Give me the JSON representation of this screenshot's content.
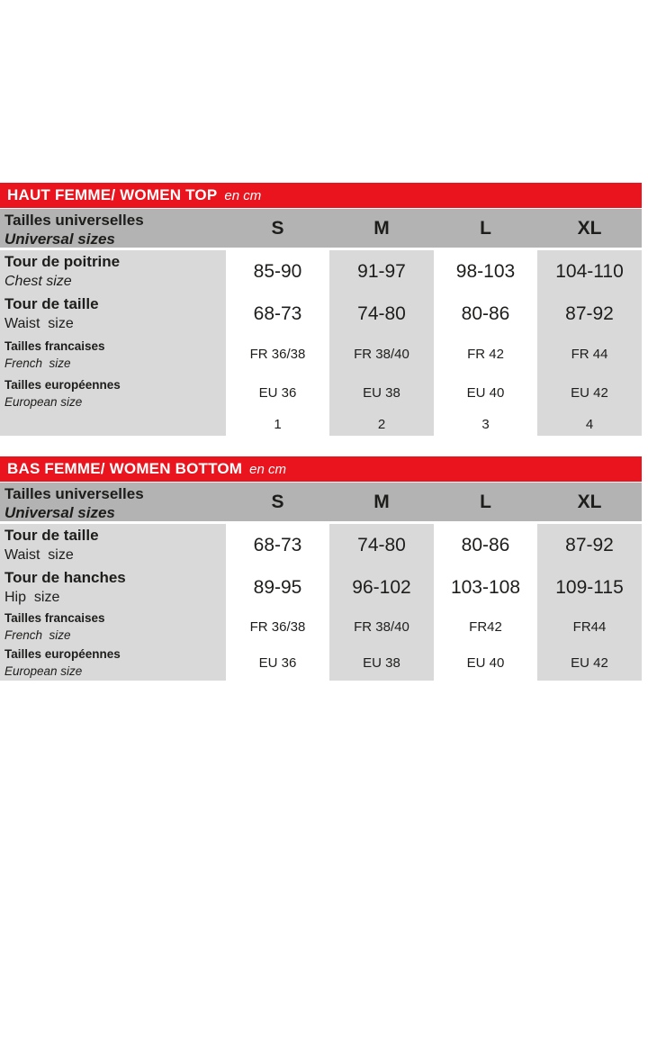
{
  "accent_color": "#e9141d",
  "header_gray": "#b3b3b3",
  "column_gray": "#d9d9d9",
  "tables": [
    {
      "title": "HAUT FEMME/ WOMEN TOP",
      "unit": "en cm",
      "header": {
        "label_fr": "Tailles universelles",
        "label_en": "Universal sizes",
        "sizes": [
          "S",
          "M",
          "L",
          "XL"
        ]
      },
      "rows": [
        {
          "label_fr": "Tour de poitrine",
          "label_en": "Chest size",
          "values": [
            "85-90",
            "91-97",
            "98-103",
            "104-110"
          ]
        },
        {
          "label_fr": "Tour de taille",
          "label_en": "Waist  size",
          "values": [
            "68-73",
            "74-80",
            "80-86",
            "87-92"
          ]
        },
        {
          "label_fr": "Tailles francaises",
          "label_en": "French  size",
          "values": [
            "FR 36/38",
            "FR 38/40",
            "FR 42",
            "FR 44"
          ]
        },
        {
          "label_fr": "Tailles européennes",
          "label_en": "European size",
          "values": [
            "EU 36",
            "EU 38",
            "EU 40",
            "EU 42"
          ]
        },
        {
          "label_fr": "",
          "label_en": "",
          "values": [
            "1",
            "2",
            "3",
            "4"
          ]
        }
      ]
    },
    {
      "title": "BAS FEMME/ WOMEN BOTTOM",
      "unit": "en cm",
      "header": {
        "label_fr": "Tailles universelles",
        "label_en": "Universal sizes",
        "sizes": [
          "S",
          "M",
          "L",
          "XL"
        ]
      },
      "rows": [
        {
          "label_fr": "Tour de taille",
          "label_en": "Waist  size",
          "values": [
            "68-73",
            "74-80",
            "80-86",
            "87-92"
          ]
        },
        {
          "label_fr": "Tour de hanches",
          "label_en": "Hip  size",
          "values": [
            "89-95",
            "96-102",
            "103-108",
            "109-115"
          ]
        },
        {
          "label_fr": "Tailles francaises",
          "label_en": "French  size",
          "values": [
            "FR 36/38",
            "FR 38/40",
            "FR42",
            "FR44"
          ]
        },
        {
          "label_fr": "Tailles européennes",
          "label_en": "European size",
          "values": [
            "EU 36",
            "EU 38",
            "EU 40",
            "EU 42"
          ]
        }
      ]
    }
  ]
}
